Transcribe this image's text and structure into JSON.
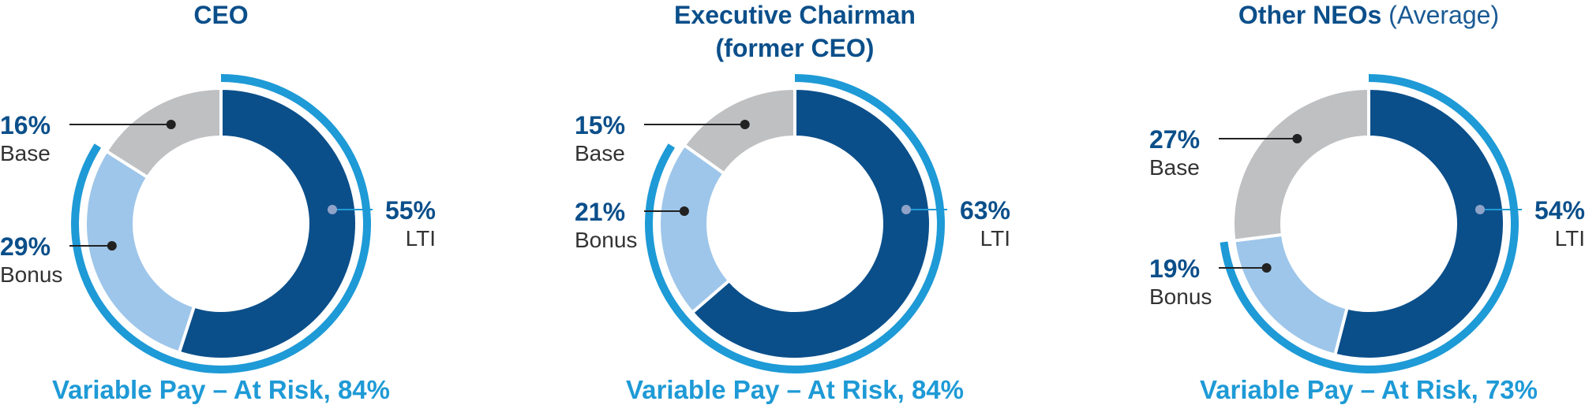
{
  "chart_data": [
    {
      "type": "donut",
      "title": "CEO",
      "title_suffix": "",
      "segments": [
        {
          "name": "LTI",
          "value": 55,
          "label": "55%",
          "color": "#0b4f8a"
        },
        {
          "name": "Bonus",
          "value": 29,
          "label": "29%",
          "color": "#9ec6ea"
        },
        {
          "name": "Base",
          "value": 16,
          "label": "16%",
          "color": "#bfc0c2"
        }
      ],
      "variable_pay": {
        "label": "Variable Pay – At Risk, 84%",
        "value": 84
      }
    },
    {
      "type": "donut",
      "title": "Executive Chairman",
      "title_line2": "(former CEO)",
      "title_suffix": "",
      "segments": [
        {
          "name": "LTI",
          "value": 63,
          "label": "63%",
          "color": "#0b4f8a"
        },
        {
          "name": "Bonus",
          "value": 21,
          "label": "21%",
          "color": "#9ec6ea"
        },
        {
          "name": "Base",
          "value": 15,
          "label": "15%",
          "color": "#bfc0c2"
        }
      ],
      "variable_pay": {
        "label": "Variable Pay – At Risk, 84%",
        "value": 84
      }
    },
    {
      "type": "donut",
      "title": "Other NEOs",
      "title_suffix": "(Average)",
      "segments": [
        {
          "name": "LTI",
          "value": 54,
          "label": "54%",
          "color": "#0b4f8a"
        },
        {
          "name": "Bonus",
          "value": 19,
          "label": "19%",
          "color": "#9ec6ea"
        },
        {
          "name": "Base",
          "value": 27,
          "label": "27%",
          "color": "#bfc0c2"
        }
      ],
      "variable_pay": {
        "label": "Variable Pay – At Risk, 73%",
        "value": 73
      }
    }
  ],
  "colors": {
    "lti": "#0b4f8a",
    "bonus": "#9ec6ea",
    "base": "#bfc0c2",
    "variable_pay_ring": "#1e9ad6",
    "title": "#0b4f8a"
  }
}
